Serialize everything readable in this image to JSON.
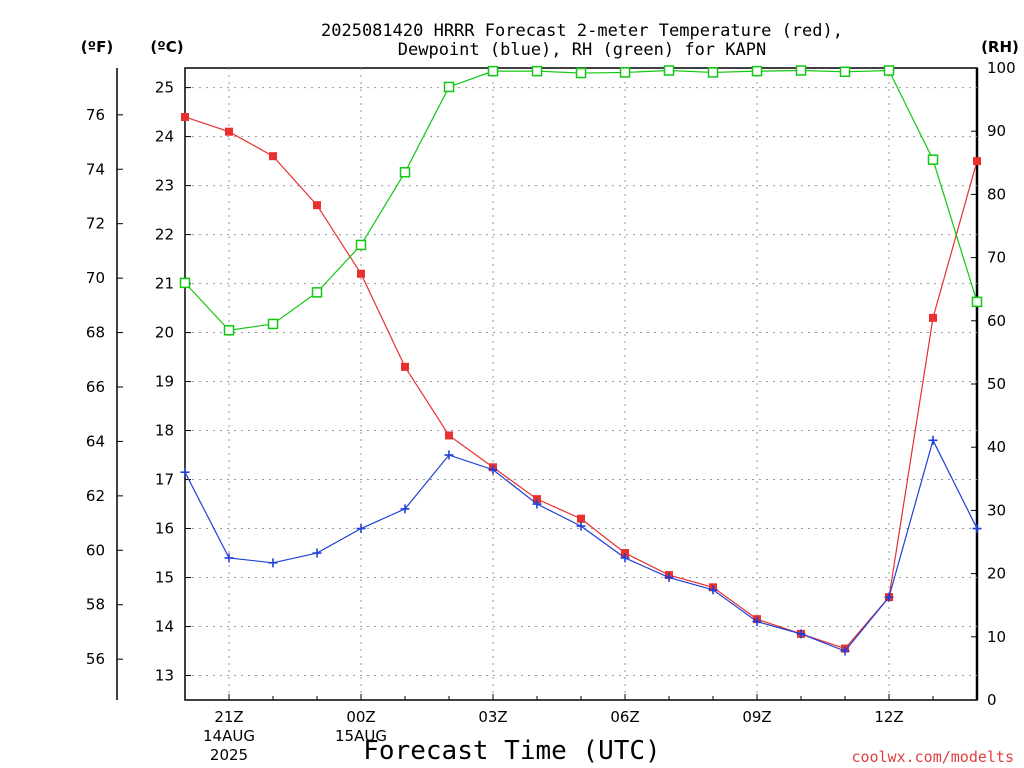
{
  "chart_data": {
    "type": "line",
    "title_line1": "2025081420 HRRR Forecast 2-meter Temperature (red),",
    "title_line2": "Dewpoint (blue), RH (green) for KAPN",
    "unit_f": "(ºF)",
    "unit_c": "(ºC)",
    "unit_rh": "(RH)",
    "xlabel": "Forecast Time (UTC)",
    "credit": "coolwx.com/modelts",
    "x_hours": [
      20,
      21,
      22,
      23,
      24,
      25,
      26,
      27,
      28,
      29,
      30,
      31,
      32,
      33,
      34,
      35,
      36,
      37,
      38
    ],
    "x_ticks": [
      {
        "hour": 21,
        "label": "21Z",
        "sub1": "14AUG",
        "sub2": "2025"
      },
      {
        "hour": 24,
        "label": "00Z",
        "sub1": "15AUG",
        "sub2": ""
      },
      {
        "hour": 27,
        "label": "03Z",
        "sub1": "",
        "sub2": ""
      },
      {
        "hour": 30,
        "label": "06Z",
        "sub1": "",
        "sub2": ""
      },
      {
        "hour": 33,
        "label": "09Z",
        "sub1": "",
        "sub2": ""
      },
      {
        "hour": 36,
        "label": "12Z",
        "sub1": "",
        "sub2": ""
      }
    ],
    "xlim": [
      20,
      38
    ],
    "ylim_c": [
      12.5,
      25.4
    ],
    "y_ticks_c": [
      13,
      14,
      15,
      16,
      17,
      18,
      19,
      20,
      21,
      22,
      23,
      24,
      25
    ],
    "y_ticks_f": [
      56,
      58,
      60,
      62,
      64,
      66,
      68,
      70,
      72,
      74,
      76
    ],
    "ylim_rh": [
      0,
      100
    ],
    "y_ticks_rh": [
      0,
      10,
      20,
      30,
      40,
      50,
      60,
      70,
      80,
      90,
      100
    ],
    "grid": true,
    "colors": {
      "temperature": "#e83030",
      "dewpoint": "#2040d8",
      "rh": "#10c810"
    },
    "series": [
      {
        "key": "temperature",
        "axis": "c",
        "marker": "filled-square",
        "values": [
          24.4,
          24.1,
          23.6,
          22.6,
          21.2,
          19.3,
          17.9,
          17.25,
          16.6,
          16.2,
          15.5,
          15.05,
          14.8,
          14.15,
          13.85,
          13.55,
          14.6,
          20.3,
          23.5
        ]
      },
      {
        "key": "dewpoint",
        "axis": "c",
        "marker": "plus",
        "values": [
          17.15,
          15.4,
          15.3,
          15.5,
          16.0,
          16.4,
          17.5,
          17.2,
          16.5,
          16.05,
          15.4,
          15.0,
          14.75,
          14.1,
          13.85,
          13.5,
          14.6,
          17.8,
          16.0
        ]
      },
      {
        "key": "rh",
        "axis": "rh",
        "marker": "open-square",
        "values": [
          66,
          58.5,
          59.5,
          64.5,
          72,
          83.5,
          97,
          99.5,
          99.5,
          99.2,
          99.3,
          99.6,
          99.3,
          99.5,
          99.6,
          99.4,
          99.6,
          85.5,
          63
        ]
      }
    ]
  }
}
